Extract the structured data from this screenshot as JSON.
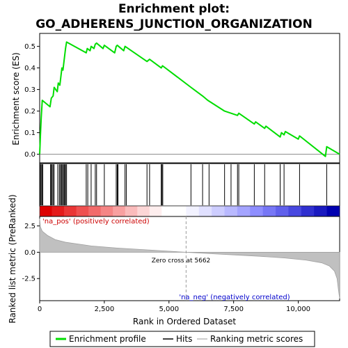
{
  "chart_data": {
    "type": "line",
    "title_line1": "Enrichment plot:",
    "title_line2": "GO_ADHERENS_JUNCTION_ORGANIZATION",
    "es_ylabel": "Enrichment score (ES)",
    "metric_ylabel": "Ranked list metric (PreRanked)",
    "xlabel": "Rank in Ordered Dataset",
    "xlim": [
      0,
      11600
    ],
    "es_ylim": [
      -0.04,
      0.56
    ],
    "metric_ylim": [
      -4.6,
      3.4
    ],
    "x_ticks": [
      {
        "v": 0,
        "label": "0"
      },
      {
        "v": 2500,
        "label": "2,500"
      },
      {
        "v": 5000,
        "label": "5,000"
      },
      {
        "v": 7500,
        "label": "7,500"
      },
      {
        "v": 10000,
        "label": "10,000"
      }
    ],
    "es_ticks": [
      {
        "v": 0.0,
        "label": "0.0"
      },
      {
        "v": 0.1,
        "label": "0.1"
      },
      {
        "v": 0.2,
        "label": "0.2"
      },
      {
        "v": 0.3,
        "label": "0.3"
      },
      {
        "v": 0.4,
        "label": "0.4"
      },
      {
        "v": 0.5,
        "label": "0.5"
      }
    ],
    "metric_ticks": [
      {
        "v": 2.5,
        "label": "2.5"
      },
      {
        "v": 0.0,
        "label": "0.0"
      },
      {
        "v": -2.5,
        "label": "-2.5"
      }
    ],
    "zero_cross": 5662,
    "zero_cross_label": "Zero cross at 5662",
    "pos_label": "'na_pos' (positively correlated)",
    "neg_label": "'na_neg' (negatively correlated)",
    "legend": [
      {
        "name": "Enrichment profile",
        "color": "#00dd00"
      },
      {
        "name": "Hits",
        "color": "#000000"
      },
      {
        "name": "Ranking metric scores",
        "color": "#bbbbbb"
      }
    ],
    "es_profile": [
      [
        0,
        0.0
      ],
      [
        30,
        0.09
      ],
      [
        60,
        0.17
      ],
      [
        100,
        0.25
      ],
      [
        400,
        0.22
      ],
      [
        450,
        0.26
      ],
      [
        520,
        0.27
      ],
      [
        560,
        0.31
      ],
      [
        680,
        0.29
      ],
      [
        720,
        0.33
      ],
      [
        780,
        0.32
      ],
      [
        820,
        0.36
      ],
      [
        860,
        0.4
      ],
      [
        900,
        0.39
      ],
      [
        940,
        0.43
      ],
      [
        970,
        0.46
      ],
      [
        1000,
        0.49
      ],
      [
        1040,
        0.52
      ],
      [
        1800,
        0.47
      ],
      [
        1840,
        0.49
      ],
      [
        1950,
        0.48
      ],
      [
        1990,
        0.5
      ],
      [
        2100,
        0.49
      ],
      [
        2150,
        0.51
      ],
      [
        2200,
        0.515
      ],
      [
        2450,
        0.49
      ],
      [
        2500,
        0.505
      ],
      [
        2900,
        0.47
      ],
      [
        2960,
        0.5
      ],
      [
        3000,
        0.505
      ],
      [
        3250,
        0.48
      ],
      [
        3300,
        0.5
      ],
      [
        4150,
        0.43
      ],
      [
        4250,
        0.44
      ],
      [
        4700,
        0.4
      ],
      [
        4750,
        0.41
      ],
      [
        5850,
        0.31
      ],
      [
        6300,
        0.27
      ],
      [
        6500,
        0.25
      ],
      [
        7150,
        0.2
      ],
      [
        7400,
        0.19
      ],
      [
        7650,
        0.18
      ],
      [
        7700,
        0.19
      ],
      [
        8300,
        0.14
      ],
      [
        8350,
        0.15
      ],
      [
        8700,
        0.12
      ],
      [
        8750,
        0.13
      ],
      [
        9300,
        0.08
      ],
      [
        9350,
        0.1
      ],
      [
        9450,
        0.09
      ],
      [
        9500,
        0.105
      ],
      [
        10000,
        0.07
      ],
      [
        10050,
        0.085
      ],
      [
        11050,
        -0.01
      ],
      [
        11100,
        0.035
      ],
      [
        11600,
        0.0
      ]
    ],
    "hits": [
      30,
      60,
      100,
      120,
      420,
      450,
      480,
      520,
      560,
      700,
      760,
      800,
      840,
      860,
      900,
      940,
      970,
      1000,
      1040,
      1800,
      1860,
      1990,
      2150,
      2200,
      2500,
      2960,
      3000,
      3030,
      3300,
      3350,
      4150,
      4250,
      4700,
      4730,
      4760,
      5850,
      6300,
      6550,
      7150,
      7400,
      7650,
      7700,
      8300,
      8700,
      9300,
      9450,
      10050,
      11100
    ],
    "metric_curve": [
      [
        0,
        3.2
      ],
      [
        30,
        2.4
      ],
      [
        100,
        2.0
      ],
      [
        300,
        1.6
      ],
      [
        600,
        1.2
      ],
      [
        1000,
        0.95
      ],
      [
        2000,
        0.6
      ],
      [
        3000,
        0.4
      ],
      [
        4000,
        0.25
      ],
      [
        5000,
        0.1
      ],
      [
        5662,
        0.0
      ],
      [
        6500,
        -0.12
      ],
      [
        7500,
        -0.25
      ],
      [
        8500,
        -0.38
      ],
      [
        9500,
        -0.55
      ],
      [
        10300,
        -0.75
      ],
      [
        10900,
        -1.0
      ],
      [
        11200,
        -1.3
      ],
      [
        11400,
        -1.8
      ],
      [
        11500,
        -2.5
      ],
      [
        11550,
        -3.5
      ],
      [
        11600,
        -4.4
      ]
    ]
  }
}
